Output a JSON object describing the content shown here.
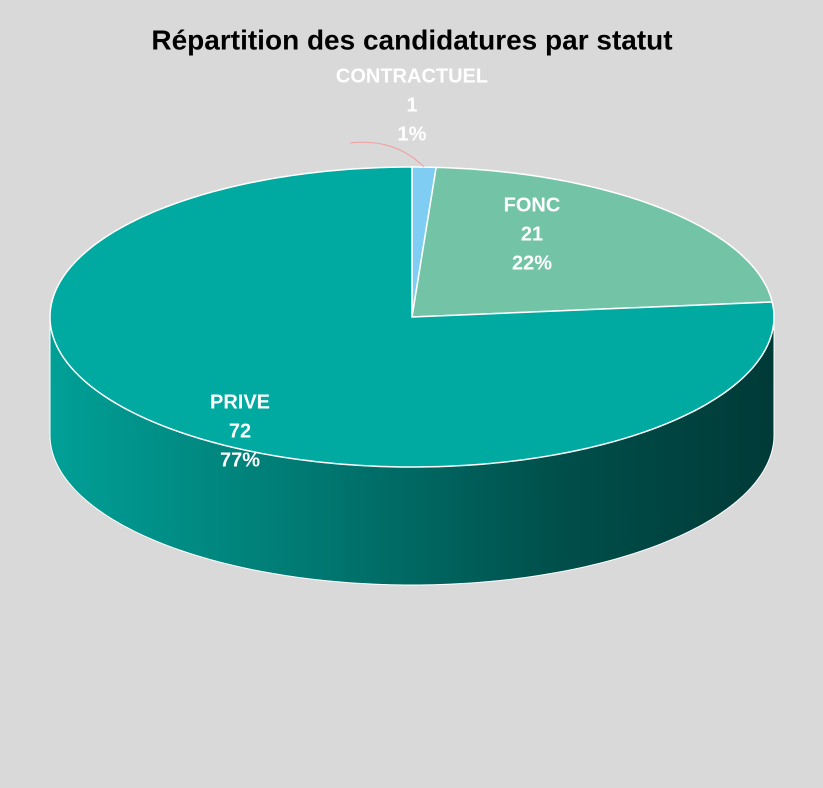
{
  "chart_data": {
    "type": "pie",
    "title": "Répartition des candidatures par statut",
    "categories": [
      "CONTRACTUEL",
      "FONC",
      "PRIVE"
    ],
    "values": [
      1,
      21,
      72
    ],
    "percent_labels": [
      "1%",
      "22%",
      "77%"
    ],
    "colors": [
      "#7fcdf2",
      "#73c4a7",
      "#00aaa0"
    ]
  }
}
